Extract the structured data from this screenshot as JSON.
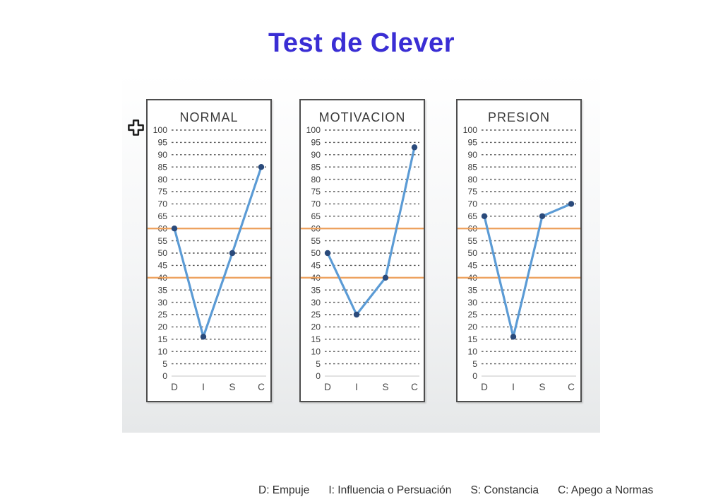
{
  "page": {
    "title": "Test de Clever",
    "title_color": "#3a2ed4"
  },
  "legend": {
    "items": [
      "D: Empuje",
      "I: Influencia o Persuación",
      "S: Constancia",
      "C: Apego a Normas"
    ]
  },
  "chart_data": [
    {
      "type": "line",
      "title": "NORMAL",
      "categories": [
        "D",
        "I",
        "S",
        "C"
      ],
      "values": [
        60,
        16,
        50,
        85
      ],
      "ylim": [
        0,
        100
      ],
      "ytick_step": 5,
      "reference_lines": [
        60,
        40
      ],
      "grid": "dashed",
      "legend_position": "none",
      "xlabel": "",
      "ylabel": "",
      "line_color": "#5b9bd5",
      "marker_color": "#2a4a7b",
      "ref_color": "#eda25f"
    },
    {
      "type": "line",
      "title": "MOTIVACION",
      "categories": [
        "D",
        "I",
        "S",
        "C"
      ],
      "values": [
        50,
        25,
        40,
        93
      ],
      "ylim": [
        0,
        100
      ],
      "ytick_step": 5,
      "reference_lines": [
        60,
        40
      ],
      "grid": "dashed",
      "legend_position": "none",
      "xlabel": "",
      "ylabel": "",
      "line_color": "#5b9bd5",
      "marker_color": "#2a4a7b",
      "ref_color": "#eda25f"
    },
    {
      "type": "line",
      "title": "PRESION",
      "categories": [
        "D",
        "I",
        "S",
        "C"
      ],
      "values": [
        65,
        16,
        65,
        70
      ],
      "ylim": [
        0,
        100
      ],
      "ytick_step": 5,
      "reference_lines": [
        60,
        40
      ],
      "grid": "dashed",
      "legend_position": "none",
      "xlabel": "",
      "ylabel": "",
      "line_color": "#5b9bd5",
      "marker_color": "#2a4a7b",
      "ref_color": "#eda25f"
    }
  ]
}
